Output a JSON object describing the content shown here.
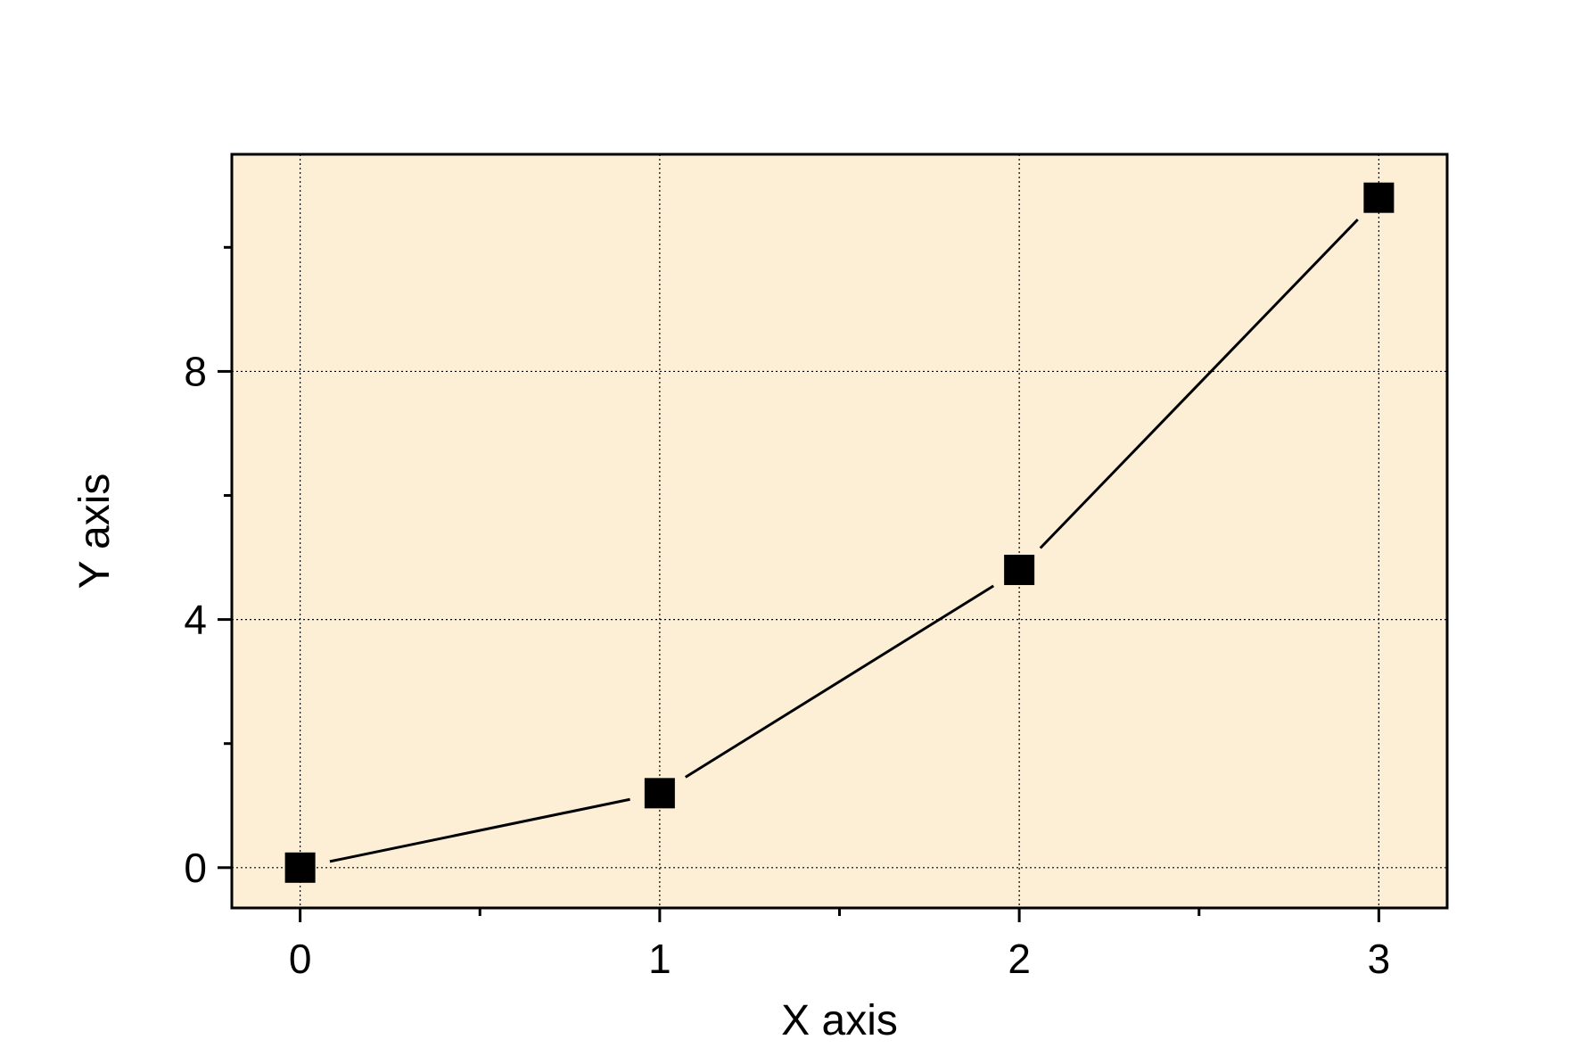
{
  "chart_data": {
    "type": "line",
    "title": "",
    "xlabel": "X axis",
    "ylabel": "Y axis",
    "xlim": [
      -0.19,
      3.19
    ],
    "ylim": [
      -0.65,
      11.5
    ],
    "x_ticks": [
      0,
      1,
      2,
      3
    ],
    "x_tick_labels": [
      "0",
      "1",
      "2",
      "3"
    ],
    "x_minor_ticks": [
      0.5,
      1.5,
      2.5
    ],
    "y_ticks": [
      0,
      4,
      8
    ],
    "y_tick_labels": [
      "0",
      "4",
      "8"
    ],
    "y_minor_ticks": [
      2,
      6,
      10
    ],
    "grid": true,
    "legend": "none",
    "series": [
      {
        "x": [
          0,
          1,
          2,
          3
        ],
        "y": [
          0,
          1.2,
          4.8,
          10.8
        ],
        "marker": "square",
        "color": "#000000"
      }
    ]
  },
  "colors": {
    "plot_background": "#fdeed6",
    "axis": "#000000",
    "grid": "#000000",
    "line": "#000000"
  }
}
